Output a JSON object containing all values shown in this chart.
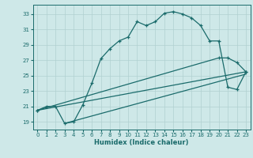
{
  "title": "",
  "xlabel": "Humidex (Indice chaleur)",
  "xlim": [
    -0.5,
    23.5
  ],
  "ylim": [
    18.0,
    34.2
  ],
  "yticks": [
    19,
    21,
    23,
    25,
    27,
    29,
    31,
    33
  ],
  "xticks": [
    0,
    1,
    2,
    3,
    4,
    5,
    6,
    7,
    8,
    9,
    10,
    11,
    12,
    13,
    14,
    15,
    16,
    17,
    18,
    19,
    20,
    21,
    22,
    23
  ],
  "bg_color": "#cee8e8",
  "line_color": "#1a6b6b",
  "grid_color": "#b0d0d0",
  "curve1_x": [
    0,
    1,
    2,
    3,
    4,
    5,
    6,
    7,
    8,
    9,
    10,
    11,
    12,
    13,
    14,
    15,
    16,
    17,
    18,
    19,
    20,
    21,
    22,
    23
  ],
  "curve1_y": [
    20.5,
    21.0,
    21.0,
    18.8,
    19.0,
    21.2,
    24.0,
    27.2,
    28.5,
    29.5,
    30.0,
    32.0,
    31.5,
    32.0,
    33.1,
    33.3,
    33.0,
    32.5,
    31.5,
    29.5,
    29.5,
    23.5,
    23.2,
    25.5
  ],
  "curve2_x": [
    0,
    20,
    21,
    22,
    23
  ],
  "curve2_y": [
    20.5,
    27.3,
    27.3,
    26.7,
    25.5
  ],
  "line1_x": [
    0,
    23
  ],
  "line1_y": [
    20.5,
    25.5
  ],
  "line2_x": [
    3,
    23
  ],
  "line2_y": [
    18.8,
    25.2
  ]
}
